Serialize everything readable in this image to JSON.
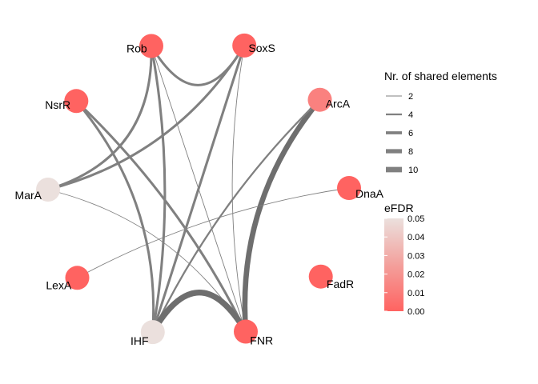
{
  "nodes": [
    {
      "id": "SoxS",
      "label": "SoxS",
      "efdr": 0.0
    },
    {
      "id": "ArcA",
      "label": "ArcA",
      "efdr": 0.012
    },
    {
      "id": "DnaA",
      "label": "DnaA",
      "efdr": 0.0
    },
    {
      "id": "FadR",
      "label": "FadR",
      "efdr": 0.0
    },
    {
      "id": "FNR",
      "label": "FNR",
      "efdr": 0.0
    },
    {
      "id": "IHF",
      "label": "IHF",
      "efdr": 0.05
    },
    {
      "id": "LexA",
      "label": "LexA",
      "efdr": 0.0
    },
    {
      "id": "MarA",
      "label": "MarA",
      "efdr": 0.05
    },
    {
      "id": "NsrR",
      "label": "NsrR",
      "efdr": 0.0
    },
    {
      "id": "Rob",
      "label": "Rob",
      "efdr": 0.0
    }
  ],
  "edges": [
    {
      "from": "SoxS",
      "to": "Rob",
      "shared": 5
    },
    {
      "from": "SoxS",
      "to": "MarA",
      "shared": 5
    },
    {
      "from": "SoxS",
      "to": "IHF",
      "shared": 5
    },
    {
      "from": "SoxS",
      "to": "FNR",
      "shared": 2
    },
    {
      "from": "Rob",
      "to": "MarA",
      "shared": 5
    },
    {
      "from": "Rob",
      "to": "FNR",
      "shared": 2
    },
    {
      "from": "Rob",
      "to": "IHF",
      "shared": 5
    },
    {
      "from": "ArcA",
      "to": "FNR",
      "shared": 10
    },
    {
      "from": "ArcA",
      "to": "IHF",
      "shared": 4
    },
    {
      "from": "DnaA",
      "to": "LexA",
      "shared": 2
    },
    {
      "from": "NsrR",
      "to": "FNR",
      "shared": 5
    },
    {
      "from": "NsrR",
      "to": "IHF",
      "shared": 5
    },
    {
      "from": "MarA",
      "to": "FNR",
      "shared": 2
    },
    {
      "from": "FNR",
      "to": "IHF",
      "shared": 11
    }
  ],
  "legend": {
    "width_title": "Nr. of shared elements",
    "width_items": [
      {
        "label": "2",
        "value": 2
      },
      {
        "label": "4",
        "value": 4
      },
      {
        "label": "6",
        "value": 6
      },
      {
        "label": "8",
        "value": 8
      },
      {
        "label": "10",
        "value": 10
      }
    ],
    "color_title": "eFDR",
    "color_ticks": [
      "0.05",
      "0.04",
      "0.03",
      "0.02",
      "0.01",
      "0.00"
    ],
    "color_low": "#ff6361",
    "color_high": "#ebe0dd",
    "edge_color": "#808080"
  }
}
